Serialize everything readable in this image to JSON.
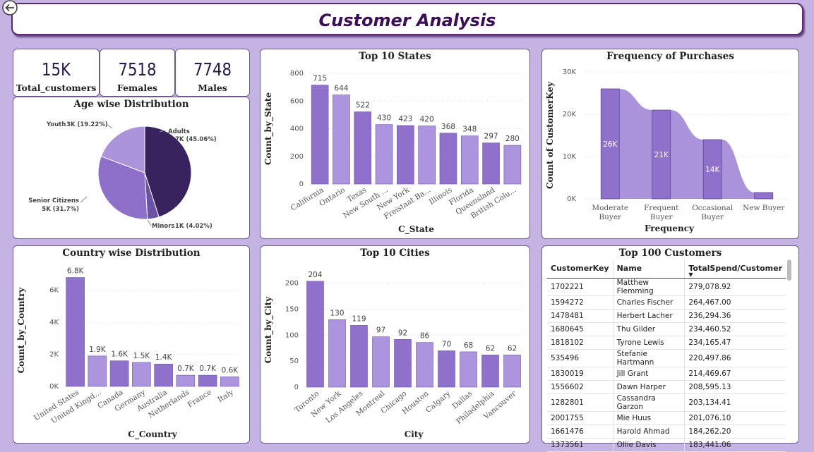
{
  "header": {
    "title": "Customer Analysis"
  },
  "kpis": [
    {
      "value": "15K",
      "label": "Total_customers"
    },
    {
      "value": "7518",
      "label": "Females"
    },
    {
      "value": "7748",
      "label": "Males"
    }
  ],
  "age_chart": {
    "title": "Age wise Distribution",
    "chart_data": {
      "type": "pie",
      "slices": [
        {
          "name": "Adults",
          "value_label": "7K (45.06%)",
          "percent": 45.06,
          "color": "#38235e"
        },
        {
          "name": "Minors",
          "value_label": "1K (4.02%)",
          "percent": 4.02,
          "color": "#6a52a8"
        },
        {
          "name": "Senior Citizens",
          "value_label": "5K (31.7%)",
          "percent": 31.7,
          "color": "#8e6fc9"
        },
        {
          "name": "Youth",
          "value_label": "3K (19.22%)",
          "percent": 19.22,
          "color": "#ac94da"
        }
      ]
    }
  },
  "states_chart": {
    "title": "Top 10 States",
    "chart_data": {
      "type": "bar",
      "categories": [
        "California",
        "Ontario",
        "Texas",
        "New South ...",
        "New York",
        "Freistaat Ba...",
        "Illinois",
        "Florida",
        "Queensland",
        "British Colu..."
      ],
      "values": [
        715,
        644,
        522,
        430,
        423,
        420,
        368,
        348,
        297,
        280
      ],
      "xlabel": "C_State",
      "ylabel": "Count_by_State",
      "ylim": [
        0,
        800
      ],
      "yticks": [
        0,
        200,
        400,
        600,
        800
      ]
    }
  },
  "frequency_chart": {
    "title": "Frequency of Purchases",
    "chart_data": {
      "type": "bar",
      "categories": [
        "Moderate Buyer",
        "Frequent Buyer",
        "Occasional Buyer",
        "New Buyer"
      ],
      "values": [
        26,
        21,
        14,
        1.5
      ],
      "data_labels": [
        "26K",
        "21K",
        "14K",
        ""
      ],
      "xlabel": "Frequency",
      "ylabel": "Count of CustomerKey",
      "ylim": [
        0,
        30
      ],
      "yticks": [
        "0K",
        "10K",
        "20K",
        "30K"
      ]
    }
  },
  "country_chart": {
    "title": "Country wise Distribution",
    "chart_data": {
      "type": "bar",
      "categories": [
        "United States",
        "United Kingd...",
        "Canada",
        "Germany",
        "Australia",
        "Netherlands",
        "France",
        "Italy"
      ],
      "values": [
        6.8,
        1.9,
        1.6,
        1.5,
        1.4,
        0.7,
        0.7,
        0.6
      ],
      "data_labels": [
        "6.8K",
        "1.9K",
        "1.6K",
        "1.5K",
        "1.4K",
        "0.7K",
        "0.7K",
        "0.6K"
      ],
      "xlabel": "C_Country",
      "ylabel": "Count_by_Country",
      "ylim": [
        0,
        7
      ],
      "yticks": [
        "0K",
        "2K",
        "4K",
        "6K"
      ]
    }
  },
  "cities_chart": {
    "title": "Top 10 Cities",
    "chart_data": {
      "type": "bar",
      "categories": [
        "Toronto",
        "New York",
        "Los Angeles",
        "Montreal",
        "Chicago",
        "Houston",
        "Calgary",
        "Dallas",
        "Philadelphia",
        "Vancouver"
      ],
      "values": [
        204,
        130,
        119,
        97,
        92,
        86,
        70,
        68,
        62,
        62
      ],
      "xlabel": "City",
      "ylabel": "Count_by_City",
      "ylim": [
        0,
        220
      ],
      "yticks": [
        0,
        50,
        100,
        150,
        200
      ]
    }
  },
  "top_customers": {
    "title": "Top 100 Customers",
    "columns": [
      "CustomerKey",
      "Name",
      "TotalSpend/Customer"
    ],
    "rows": [
      [
        "1702221",
        "Matthew Flemming",
        "279,078.92"
      ],
      [
        "1594272",
        "Charles Fischer",
        "264,467.00"
      ],
      [
        "1478481",
        "Herbert Lacher",
        "236,294.36"
      ],
      [
        "1680645",
        "Thu Gilder",
        "234,460.52"
      ],
      [
        "1818102",
        "Tyrone Lewis",
        "234,165.47"
      ],
      [
        "535496",
        "Stefanie Hartmann",
        "220,497.86"
      ],
      [
        "1830019",
        "Jill Grant",
        "214,469.67"
      ],
      [
        "1556602",
        "Dawn Harper",
        "208,595.13"
      ],
      [
        "1282801",
        "Cassandra Garzon",
        "203,134.41"
      ],
      [
        "2001755",
        "Mie Huus",
        "201,076.10"
      ],
      [
        "1661476",
        "Harold Ahmad",
        "184,262.20"
      ],
      [
        "1373561",
        "Ollie Davis",
        "183,441.06"
      ]
    ]
  },
  "colors": {
    "bar_dark": "#8f71cc",
    "bar_light": "#ad94de",
    "background": "#c5b3e3"
  }
}
